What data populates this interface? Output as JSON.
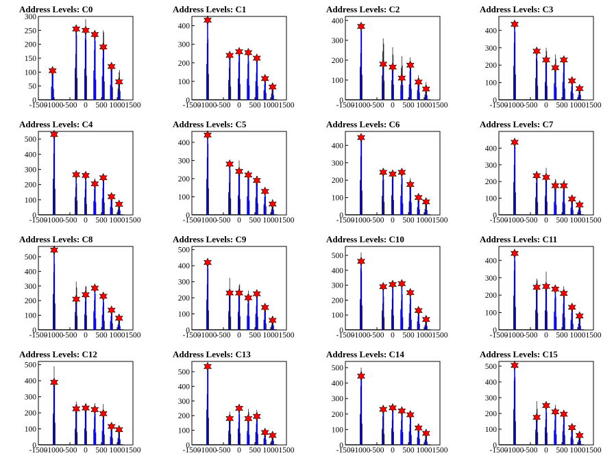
{
  "figure": {
    "colors": {
      "histogram": "#0000ff",
      "baseline": "#000000",
      "marker": "#ff0000",
      "marker_stroke": "#000000"
    },
    "xticks": [
      -1500,
      -1000,
      -500,
      0,
      500,
      1000,
      1500
    ],
    "xlim": [
      -1500,
      1500
    ]
  },
  "chart_data": [
    {
      "type": "bar",
      "title": "Address Levels: C0",
      "ylim": [
        0,
        300
      ],
      "yticks": [
        0,
        50,
        100,
        150,
        200,
        250,
        300
      ],
      "peaks": [
        {
          "x": -1050,
          "y": 105,
          "h": 135
        },
        {
          "x": -300,
          "y": 255,
          "h": 270
        },
        {
          "x": 0,
          "y": 250,
          "h": 290
        },
        {
          "x": 290,
          "y": 235,
          "h": 245
        },
        {
          "x": 560,
          "y": 190,
          "h": 250
        },
        {
          "x": 820,
          "y": 120,
          "h": 150
        },
        {
          "x": 1060,
          "y": 65,
          "h": 110
        }
      ]
    },
    {
      "type": "bar",
      "title": "Address Levels: C1",
      "ylim": [
        0,
        450
      ],
      "yticks": [
        0,
        100,
        200,
        300,
        400
      ],
      "peaks": [
        {
          "x": -1000,
          "y": 430,
          "h": 430
        },
        {
          "x": -300,
          "y": 240,
          "h": 260
        },
        {
          "x": 0,
          "y": 260,
          "h": 295
        },
        {
          "x": 290,
          "y": 255,
          "h": 265
        },
        {
          "x": 560,
          "y": 225,
          "h": 240
        },
        {
          "x": 820,
          "y": 115,
          "h": 130
        },
        {
          "x": 1060,
          "y": 70,
          "h": 90
        }
      ]
    },
    {
      "type": "bar",
      "title": "Address Levels: C2",
      "ylim": [
        0,
        420
      ],
      "yticks": [
        0,
        100,
        200,
        300,
        400
      ],
      "peaks": [
        {
          "x": -1000,
          "y": 370,
          "h": 380
        },
        {
          "x": -300,
          "y": 180,
          "h": 310
        },
        {
          "x": 0,
          "y": 165,
          "h": 280
        },
        {
          "x": 290,
          "y": 110,
          "h": 220
        },
        {
          "x": 560,
          "y": 175,
          "h": 215
        },
        {
          "x": 820,
          "y": 90,
          "h": 125
        },
        {
          "x": 1060,
          "y": 55,
          "h": 90
        }
      ]
    },
    {
      "type": "bar",
      "title": "Address Levels: C3",
      "ylim": [
        0,
        480
      ],
      "yticks": [
        0,
        100,
        200,
        300,
        400
      ],
      "peaks": [
        {
          "x": -1000,
          "y": 435,
          "h": 440
        },
        {
          "x": -300,
          "y": 280,
          "h": 310
        },
        {
          "x": 0,
          "y": 230,
          "h": 300
        },
        {
          "x": 290,
          "y": 185,
          "h": 280
        },
        {
          "x": 560,
          "y": 230,
          "h": 245
        },
        {
          "x": 820,
          "y": 110,
          "h": 130
        },
        {
          "x": 1060,
          "y": 65,
          "h": 90
        }
      ]
    },
    {
      "type": "bar",
      "title": "Address Levels: C4",
      "ylim": [
        0,
        550
      ],
      "yticks": [
        0,
        100,
        200,
        300,
        400,
        500
      ],
      "peaks": [
        {
          "x": -1000,
          "y": 530,
          "h": 540
        },
        {
          "x": -300,
          "y": 265,
          "h": 280
        },
        {
          "x": 0,
          "y": 260,
          "h": 280
        },
        {
          "x": 290,
          "y": 205,
          "h": 250
        },
        {
          "x": 560,
          "y": 245,
          "h": 260
        },
        {
          "x": 820,
          "y": 120,
          "h": 135
        },
        {
          "x": 1060,
          "y": 70,
          "h": 90
        }
      ]
    },
    {
      "type": "bar",
      "title": "Address Levels: C5",
      "ylim": [
        0,
        460
      ],
      "yticks": [
        0,
        100,
        200,
        300,
        400
      ],
      "peaks": [
        {
          "x": -1000,
          "y": 440,
          "h": 445
        },
        {
          "x": -300,
          "y": 280,
          "h": 290
        },
        {
          "x": 0,
          "y": 240,
          "h": 300
        },
        {
          "x": 290,
          "y": 220,
          "h": 265
        },
        {
          "x": 560,
          "y": 190,
          "h": 240
        },
        {
          "x": 820,
          "y": 130,
          "h": 140
        },
        {
          "x": 1060,
          "y": 60,
          "h": 90
        }
      ]
    },
    {
      "type": "bar",
      "title": "Address Levels: C6",
      "ylim": [
        0,
        480
      ],
      "yticks": [
        0,
        100,
        200,
        300,
        400
      ],
      "peaks": [
        {
          "x": -1000,
          "y": 445,
          "h": 450
        },
        {
          "x": -300,
          "y": 245,
          "h": 255
        },
        {
          "x": 0,
          "y": 235,
          "h": 290
        },
        {
          "x": 290,
          "y": 245,
          "h": 260
        },
        {
          "x": 560,
          "y": 175,
          "h": 215
        },
        {
          "x": 820,
          "y": 100,
          "h": 125
        },
        {
          "x": 1060,
          "y": 75,
          "h": 90
        }
      ]
    },
    {
      "type": "bar",
      "title": "Address Levels: C7",
      "ylim": [
        0,
        500
      ],
      "yticks": [
        0,
        100,
        200,
        300,
        400
      ],
      "peaks": [
        {
          "x": -1000,
          "y": 435,
          "h": 450
        },
        {
          "x": -300,
          "y": 235,
          "h": 265
        },
        {
          "x": 0,
          "y": 225,
          "h": 290
        },
        {
          "x": 290,
          "y": 175,
          "h": 215
        },
        {
          "x": 560,
          "y": 175,
          "h": 220
        },
        {
          "x": 820,
          "y": 95,
          "h": 115
        },
        {
          "x": 1060,
          "y": 60,
          "h": 85
        }
      ]
    },
    {
      "type": "bar",
      "title": "Address Levels: C8",
      "ylim": [
        0,
        570
      ],
      "yticks": [
        0,
        100,
        200,
        300,
        400,
        500
      ],
      "peaks": [
        {
          "x": -1000,
          "y": 545,
          "h": 550
        },
        {
          "x": -300,
          "y": 210,
          "h": 330
        },
        {
          "x": 0,
          "y": 240,
          "h": 310
        },
        {
          "x": 290,
          "y": 285,
          "h": 295
        },
        {
          "x": 560,
          "y": 230,
          "h": 240
        },
        {
          "x": 820,
          "y": 135,
          "h": 145
        },
        {
          "x": 1060,
          "y": 80,
          "h": 90
        }
      ]
    },
    {
      "type": "bar",
      "title": "Address Levels: C9",
      "ylim": [
        0,
        520
      ],
      "yticks": [
        0,
        100,
        200,
        300,
        400,
        500
      ],
      "peaks": [
        {
          "x": -1000,
          "y": 420,
          "h": 440
        },
        {
          "x": -300,
          "y": 230,
          "h": 325
        },
        {
          "x": 0,
          "y": 230,
          "h": 325
        },
        {
          "x": 290,
          "y": 200,
          "h": 250
        },
        {
          "x": 560,
          "y": 225,
          "h": 240
        },
        {
          "x": 820,
          "y": 140,
          "h": 155
        },
        {
          "x": 1060,
          "y": 60,
          "h": 95
        }
      ]
    },
    {
      "type": "bar",
      "title": "Address Levels: C10",
      "ylim": [
        0,
        560
      ],
      "yticks": [
        0,
        100,
        200,
        300,
        400,
        500
      ],
      "peaks": [
        {
          "x": -1000,
          "y": 460,
          "h": 520
        },
        {
          "x": -300,
          "y": 290,
          "h": 300
        },
        {
          "x": 0,
          "y": 305,
          "h": 320
        },
        {
          "x": 290,
          "y": 310,
          "h": 320
        },
        {
          "x": 560,
          "y": 250,
          "h": 260
        },
        {
          "x": 820,
          "y": 130,
          "h": 140
        },
        {
          "x": 1060,
          "y": 70,
          "h": 85
        }
      ]
    },
    {
      "type": "bar",
      "title": "Address Levels: C11",
      "ylim": [
        0,
        480
      ],
      "yticks": [
        0,
        100,
        200,
        300,
        400
      ],
      "peaks": [
        {
          "x": -1000,
          "y": 440,
          "h": 450
        },
        {
          "x": -300,
          "y": 245,
          "h": 335
        },
        {
          "x": 0,
          "y": 250,
          "h": 335
        },
        {
          "x": 290,
          "y": 235,
          "h": 260
        },
        {
          "x": 560,
          "y": 210,
          "h": 255
        },
        {
          "x": 820,
          "y": 130,
          "h": 140
        },
        {
          "x": 1060,
          "y": 80,
          "h": 90
        }
      ]
    },
    {
      "type": "bar",
      "title": "Address Levels: C12",
      "ylim": [
        0,
        520
      ],
      "yticks": [
        0,
        100,
        200,
        300,
        400,
        500
      ],
      "peaks": [
        {
          "x": -1000,
          "y": 390,
          "h": 490
        },
        {
          "x": -300,
          "y": 225,
          "h": 270
        },
        {
          "x": 0,
          "y": 230,
          "h": 280
        },
        {
          "x": 290,
          "y": 220,
          "h": 260
        },
        {
          "x": 560,
          "y": 195,
          "h": 255
        },
        {
          "x": 820,
          "y": 115,
          "h": 130
        },
        {
          "x": 1060,
          "y": 95,
          "h": 105
        }
      ]
    },
    {
      "type": "bar",
      "title": "Address Levels: C13",
      "ylim": [
        0,
        570
      ],
      "yticks": [
        0,
        100,
        200,
        300,
        400,
        500
      ],
      "peaks": [
        {
          "x": -1000,
          "y": 535,
          "h": 555
        },
        {
          "x": -300,
          "y": 180,
          "h": 265
        },
        {
          "x": 0,
          "y": 250,
          "h": 265
        },
        {
          "x": 290,
          "y": 180,
          "h": 265
        },
        {
          "x": 560,
          "y": 195,
          "h": 240
        },
        {
          "x": 820,
          "y": 85,
          "h": 115
        },
        {
          "x": 1060,
          "y": 65,
          "h": 85
        }
      ]
    },
    {
      "type": "bar",
      "title": "Address Levels: C14",
      "ylim": [
        0,
        540
      ],
      "yticks": [
        0,
        100,
        200,
        300,
        400,
        500
      ],
      "peaks": [
        {
          "x": -1000,
          "y": 445,
          "h": 500
        },
        {
          "x": -300,
          "y": 230,
          "h": 250
        },
        {
          "x": 0,
          "y": 240,
          "h": 250
        },
        {
          "x": 290,
          "y": 220,
          "h": 240
        },
        {
          "x": 560,
          "y": 195,
          "h": 210
        },
        {
          "x": 820,
          "y": 110,
          "h": 125
        },
        {
          "x": 1060,
          "y": 75,
          "h": 85
        }
      ]
    },
    {
      "type": "bar",
      "title": "Address Levels: C15",
      "ylim": [
        0,
        530
      ],
      "yticks": [
        0,
        100,
        200,
        300,
        400,
        500
      ],
      "peaks": [
        {
          "x": -1000,
          "y": 505,
          "h": 510
        },
        {
          "x": -300,
          "y": 175,
          "h": 290
        },
        {
          "x": 0,
          "y": 250,
          "h": 260
        },
        {
          "x": 290,
          "y": 210,
          "h": 255
        },
        {
          "x": 560,
          "y": 195,
          "h": 210
        },
        {
          "x": 820,
          "y": 110,
          "h": 125
        },
        {
          "x": 1060,
          "y": 60,
          "h": 85
        }
      ]
    }
  ]
}
